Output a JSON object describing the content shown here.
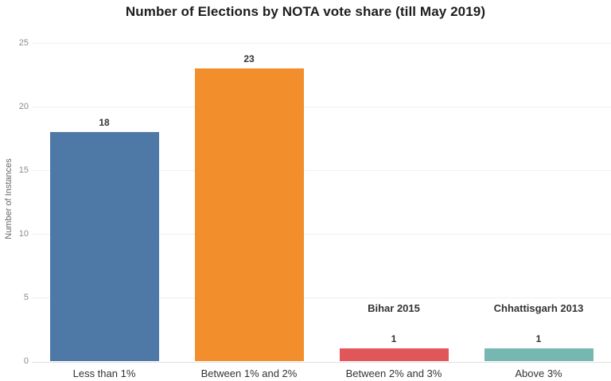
{
  "chart_data": {
    "type": "bar",
    "title": "Number of Elections by NOTA vote share (till May 2019)",
    "categories": [
      "Less than 1%",
      "Between 1% and 2%",
      "Between 2% and 3%",
      "Above 3%"
    ],
    "values": [
      18,
      23,
      1,
      1
    ],
    "value_labels": [
      "18",
      "23",
      "1",
      "1"
    ],
    "bar_colors": [
      "#4e79a7",
      "#f28e2b",
      "#e15759",
      "#76b7b2"
    ],
    "annotations": [
      {
        "category": "Between 2% and 3%",
        "category_index": 2,
        "text": "Bihar 2015"
      },
      {
        "category": "Above 3%",
        "category_index": 3,
        "text": "Chhattisgarh 2013"
      }
    ],
    "xlabel": "",
    "ylabel": "Number of Instances",
    "ylim": [
      0,
      25
    ],
    "yticks": [
      0,
      5,
      10,
      15,
      20,
      25
    ],
    "grid": true,
    "legend": false
  },
  "colors": {
    "background": "#ffffff",
    "grid_line": "#f0f0f0",
    "axis_line": "#e0e0e0",
    "tick_label": "#8c8c8c",
    "axis_title": "#666666",
    "label_text": "#333333",
    "title_text": "#1e1e1e"
  }
}
